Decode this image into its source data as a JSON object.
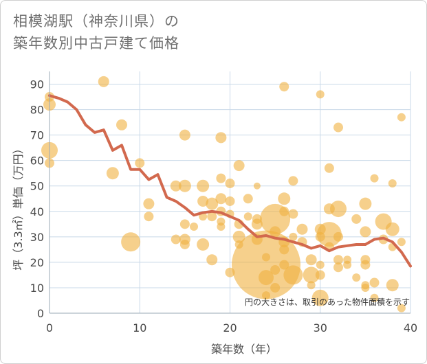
{
  "title_line1": "相模湖駅（神奈川県）の",
  "title_line2": "築年数別中古戸建て価格",
  "chart_data": {
    "type": "scatter",
    "xlabel": "築年数（年）",
    "ylabel": "坪（3.3㎡）単価（万円）",
    "xlim": [
      0,
      40
    ],
    "ylim": [
      0,
      95
    ],
    "xticks": [
      0,
      10,
      20,
      30,
      40
    ],
    "yticks": [
      0,
      10,
      20,
      30,
      40,
      50,
      60,
      70,
      80,
      90
    ],
    "note": "円の大きさは、取引のあった物件面積を示す",
    "colors": {
      "bubble": "#f0b040",
      "line": "#d2694e",
      "grid": "#c8d8e8"
    },
    "average_line": {
      "x": [
        0,
        1,
        2,
        3,
        4,
        5,
        6,
        7,
        8,
        9,
        10,
        11,
        12,
        13,
        14,
        15,
        16,
        17,
        18,
        19,
        20,
        21,
        22,
        23,
        24,
        25,
        26,
        27,
        28,
        29,
        30,
        31,
        32,
        33,
        34,
        35,
        36,
        37,
        38,
        39,
        40
      ],
      "y": [
        85.5,
        84.5,
        83,
        80,
        74,
        71,
        72,
        64,
        66,
        56.5,
        56.5,
        52.5,
        54.5,
        45.5,
        44,
        41.5,
        38.5,
        39.5,
        40,
        39.5,
        38,
        36.5,
        33,
        30,
        30.5,
        29.5,
        29,
        28,
        27,
        25.5,
        26.5,
        24.5,
        26,
        26.5,
        27,
        27,
        29,
        29.5,
        28,
        24,
        18.5
      ]
    },
    "bubbles": [
      {
        "x": 0,
        "y": 85,
        "s": 7
      },
      {
        "x": 0,
        "y": 82,
        "s": 9
      },
      {
        "x": 0,
        "y": 64,
        "s": 12
      },
      {
        "x": 0,
        "y": 59,
        "s": 7
      },
      {
        "x": 6,
        "y": 91,
        "s": 8
      },
      {
        "x": 7,
        "y": 55,
        "s": 9
      },
      {
        "x": 8,
        "y": 74,
        "s": 8
      },
      {
        "x": 9,
        "y": 28,
        "s": 14
      },
      {
        "x": 10,
        "y": 59,
        "s": 7
      },
      {
        "x": 11,
        "y": 43,
        "s": 8
      },
      {
        "x": 11,
        "y": 38,
        "s": 7
      },
      {
        "x": 14,
        "y": 29,
        "s": 7
      },
      {
        "x": 14,
        "y": 50,
        "s": 8
      },
      {
        "x": 15,
        "y": 70,
        "s": 8
      },
      {
        "x": 15,
        "y": 50,
        "s": 9
      },
      {
        "x": 15,
        "y": 35,
        "s": 7
      },
      {
        "x": 15,
        "y": 29,
        "s": 8
      },
      {
        "x": 15,
        "y": 27,
        "s": 7
      },
      {
        "x": 16,
        "y": 34,
        "s": 6
      },
      {
        "x": 17,
        "y": 50,
        "s": 9
      },
      {
        "x": 17,
        "y": 44,
        "s": 8
      },
      {
        "x": 17,
        "y": 27,
        "s": 9
      },
      {
        "x": 17,
        "y": 38,
        "s": 6
      },
      {
        "x": 18,
        "y": 43,
        "s": 9
      },
      {
        "x": 18,
        "y": 38,
        "s": 7
      },
      {
        "x": 18,
        "y": 21,
        "s": 8
      },
      {
        "x": 19,
        "y": 69,
        "s": 8
      },
      {
        "x": 19,
        "y": 53,
        "s": 7
      },
      {
        "x": 19,
        "y": 45,
        "s": 8
      },
      {
        "x": 19,
        "y": 40,
        "s": 7
      },
      {
        "x": 19,
        "y": 36,
        "s": 6
      },
      {
        "x": 19,
        "y": 34,
        "s": 6
      },
      {
        "x": 20,
        "y": 51,
        "s": 7
      },
      {
        "x": 20,
        "y": 44,
        "s": 7
      },
      {
        "x": 20,
        "y": 39,
        "s": 6
      },
      {
        "x": 20,
        "y": 16,
        "s": 7
      },
      {
        "x": 21,
        "y": 58,
        "s": 8
      },
      {
        "x": 21,
        "y": 35,
        "s": 7
      },
      {
        "x": 21,
        "y": 30,
        "s": 9
      },
      {
        "x": 21,
        "y": 27,
        "s": 6
      },
      {
        "x": 22,
        "y": 45,
        "s": 7
      },
      {
        "x": 22,
        "y": 38,
        "s": 6
      },
      {
        "x": 23,
        "y": 50,
        "s": 5
      },
      {
        "x": 23,
        "y": 37,
        "s": 7
      },
      {
        "x": 23,
        "y": 35,
        "s": 8
      },
      {
        "x": 23,
        "y": 29,
        "s": 8
      },
      {
        "x": 24,
        "y": 19,
        "s": 50
      },
      {
        "x": 24,
        "y": 22,
        "s": 6
      },
      {
        "x": 24,
        "y": 14,
        "s": 11
      },
      {
        "x": 24,
        "y": 7,
        "s": 6
      },
      {
        "x": 25,
        "y": 37,
        "s": 22
      },
      {
        "x": 25,
        "y": 32,
        "s": 8
      },
      {
        "x": 25,
        "y": 17,
        "s": 7
      },
      {
        "x": 25,
        "y": 10,
        "s": 7
      },
      {
        "x": 26,
        "y": 89,
        "s": 7
      },
      {
        "x": 26,
        "y": 45,
        "s": 9
      },
      {
        "x": 26,
        "y": 40,
        "s": 7
      },
      {
        "x": 26,
        "y": 28,
        "s": 8
      },
      {
        "x": 26,
        "y": 25,
        "s": 7
      },
      {
        "x": 26,
        "y": 19,
        "s": 7
      },
      {
        "x": 27,
        "y": 52,
        "s": 7
      },
      {
        "x": 27,
        "y": 39,
        "s": 7
      },
      {
        "x": 27,
        "y": 30,
        "s": 6
      },
      {
        "x": 27,
        "y": 15,
        "s": 14
      },
      {
        "x": 28,
        "y": 33,
        "s": 8
      },
      {
        "x": 28,
        "y": 28,
        "s": 7
      },
      {
        "x": 29,
        "y": 21,
        "s": 8
      },
      {
        "x": 29,
        "y": 15,
        "s": 12
      },
      {
        "x": 29,
        "y": 11,
        "s": 6
      },
      {
        "x": 30,
        "y": 86,
        "s": 6
      },
      {
        "x": 30,
        "y": 33,
        "s": 8
      },
      {
        "x": 30,
        "y": 30,
        "s": 7
      },
      {
        "x": 30,
        "y": 19,
        "s": 6
      },
      {
        "x": 30,
        "y": 15,
        "s": 7
      },
      {
        "x": 30,
        "y": 6,
        "s": 12
      },
      {
        "x": 31,
        "y": 57,
        "s": 7
      },
      {
        "x": 31,
        "y": 41,
        "s": 8
      },
      {
        "x": 31,
        "y": 31,
        "s": 18
      },
      {
        "x": 31,
        "y": 26,
        "s": 7
      },
      {
        "x": 32,
        "y": 73,
        "s": 7
      },
      {
        "x": 32,
        "y": 41,
        "s": 12
      },
      {
        "x": 32,
        "y": 30,
        "s": 7
      },
      {
        "x": 32,
        "y": 21,
        "s": 7
      },
      {
        "x": 32,
        "y": 18,
        "s": 7
      },
      {
        "x": 33,
        "y": 19,
        "s": 6
      },
      {
        "x": 33,
        "y": 21,
        "s": 6
      },
      {
        "x": 34,
        "y": 37,
        "s": 7
      },
      {
        "x": 34,
        "y": 14,
        "s": 6
      },
      {
        "x": 35,
        "y": 43,
        "s": 9
      },
      {
        "x": 35,
        "y": 32,
        "s": 8
      },
      {
        "x": 35,
        "y": 21,
        "s": 7
      },
      {
        "x": 35,
        "y": 19,
        "s": 7
      },
      {
        "x": 35,
        "y": 11,
        "s": 6
      },
      {
        "x": 35,
        "y": 10,
        "s": 6
      },
      {
        "x": 36,
        "y": 53,
        "s": 6
      },
      {
        "x": 36,
        "y": 12,
        "s": 7
      },
      {
        "x": 36,
        "y": 6,
        "s": 6
      },
      {
        "x": 37,
        "y": 36,
        "s": 12
      },
      {
        "x": 37,
        "y": 29,
        "s": 7
      },
      {
        "x": 38,
        "y": 51,
        "s": 6
      },
      {
        "x": 38,
        "y": 33,
        "s": 10
      },
      {
        "x": 38,
        "y": 11,
        "s": 9
      },
      {
        "x": 38,
        "y": 26,
        "s": 6
      },
      {
        "x": 39,
        "y": 77,
        "s": 6
      },
      {
        "x": 39,
        "y": 28,
        "s": 6
      },
      {
        "x": 39,
        "y": 2,
        "s": 6
      }
    ]
  }
}
